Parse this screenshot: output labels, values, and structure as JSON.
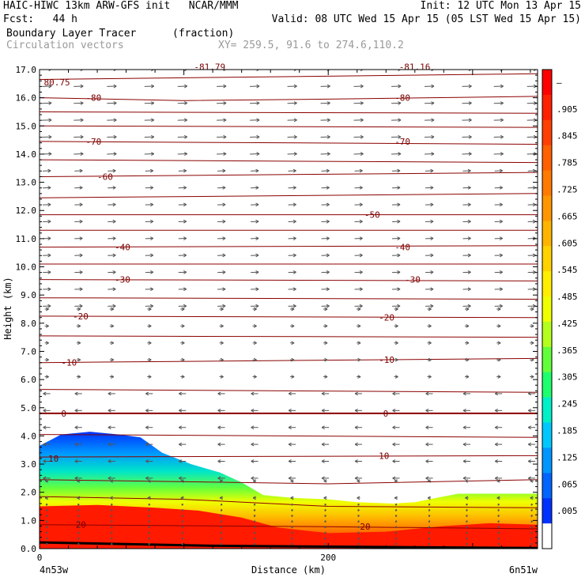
{
  "header": {
    "line1_left": "HAIC-HIWC 13km ARW-GFS init   NCAR/MMM",
    "line1_right": "Init: 12 UTC Mon 13 Apr 15",
    "line2_left": "Fcst:   44 h",
    "line2_right": "Valid: 08 UTC Wed 15 Apr 15 (05 LST Wed 15 Apr 15)",
    "field_name": "Boundary Layer Tracer",
    "field_unit": "(fraction)",
    "vector_name": "Circulation vectors",
    "xy_text": "XY= 259.5, 91.6 to 274.6,110.2"
  },
  "chart_data": {
    "type": "heatmap",
    "xlabel": "Distance (km)",
    "ylabel": "Height (km)",
    "xlim": [
      0,
      345
    ],
    "ylim": [
      0,
      17
    ],
    "x_ticks": [
      {
        "v": 0,
        "label": "0"
      },
      {
        "v": 200,
        "label": "200"
      }
    ],
    "x_end_labels": {
      "left": "4n53w",
      "right": "6n51w"
    },
    "y_ticks": [
      0,
      1,
      2,
      3,
      4,
      5,
      6,
      7,
      8,
      9,
      10,
      11,
      12,
      13,
      14,
      15,
      16,
      17
    ],
    "y_tick_labels": [
      "0.0",
      "1.0",
      "2.0",
      "3.0",
      "4.0",
      "5.0",
      "6.0",
      "7.0",
      "8.0",
      "9.0",
      "10.0",
      "11.0",
      "12.0",
      "13.0",
      "14.0",
      "15.0",
      "16.0",
      "17.0"
    ],
    "colorbar": {
      "labels": [
        "–",
        ".905",
        ".845",
        ".785",
        ".725",
        ".665",
        ".605",
        ".545",
        ".485",
        ".425",
        ".365",
        ".305",
        ".245",
        ".185",
        ".125",
        ".065",
        ".005"
      ],
      "colors": [
        "#ff0000",
        "#ff2000",
        "#ff4000",
        "#ff6000",
        "#ff7a00",
        "#ff9600",
        "#ffb400",
        "#ffd200",
        "#ffee00",
        "#f0ff00",
        "#b4ff1e",
        "#64ff3c",
        "#1eff6e",
        "#00f0c8",
        "#00c8ff",
        "#0096ff",
        "#0064ff",
        "#0032ff",
        "#ffffff"
      ]
    },
    "tracer_top_km": [
      {
        "x": 0,
        "h": 3.65
      },
      {
        "x": 15,
        "h": 4.05
      },
      {
        "x": 35,
        "h": 4.15
      },
      {
        "x": 55,
        "h": 4.05
      },
      {
        "x": 70,
        "h": 3.95
      },
      {
        "x": 85,
        "h": 3.4
      },
      {
        "x": 105,
        "h": 3.0
      },
      {
        "x": 125,
        "h": 2.7
      },
      {
        "x": 140,
        "h": 2.35
      },
      {
        "x": 155,
        "h": 1.9
      },
      {
        "x": 175,
        "h": 1.8
      },
      {
        "x": 200,
        "h": 1.75
      },
      {
        "x": 220,
        "h": 1.65
      },
      {
        "x": 245,
        "h": 1.6
      },
      {
        "x": 260,
        "h": 1.65
      },
      {
        "x": 275,
        "h": 1.8
      },
      {
        "x": 290,
        "h": 1.95
      },
      {
        "x": 312,
        "h": 1.95
      },
      {
        "x": 345,
        "h": 1.95
      }
    ],
    "red_top_km": [
      {
        "x": 0,
        "h": 1.5
      },
      {
        "x": 40,
        "h": 1.55
      },
      {
        "x": 80,
        "h": 1.45
      },
      {
        "x": 110,
        "h": 1.35
      },
      {
        "x": 140,
        "h": 1.1
      },
      {
        "x": 165,
        "h": 0.75
      },
      {
        "x": 200,
        "h": 0.55
      },
      {
        "x": 240,
        "h": 0.6
      },
      {
        "x": 280,
        "h": 0.8
      },
      {
        "x": 312,
        "h": 0.9
      },
      {
        "x": 345,
        "h": 0.85
      }
    ],
    "isotherms": [
      {
        "label": "80.75",
        "pts": [
          [
            0,
            16.65
          ],
          [
            345,
            16.85
          ]
        ]
      },
      {
        "label": "-80",
        "pts": [
          [
            0,
            16.0
          ],
          [
            100,
            15.9
          ],
          [
            200,
            15.95
          ],
          [
            345,
            16.05
          ]
        ]
      },
      {
        "label": "",
        "pts": [
          [
            0,
            15.5
          ],
          [
            345,
            15.45
          ]
        ]
      },
      {
        "label": "",
        "pts": [
          [
            0,
            15.0
          ],
          [
            345,
            14.95
          ]
        ]
      },
      {
        "label": "-70",
        "pts": [
          [
            0,
            14.45
          ],
          [
            345,
            14.35
          ]
        ]
      },
      {
        "label": "",
        "pts": [
          [
            0,
            13.8
          ],
          [
            345,
            13.7
          ]
        ]
      },
      {
        "label": "-60",
        "pts": [
          [
            0,
            13.2
          ],
          [
            345,
            13.35
          ]
        ]
      },
      {
        "label": "",
        "pts": [
          [
            0,
            12.45
          ],
          [
            345,
            12.6
          ]
        ]
      },
      {
        "label": "-50",
        "pts": [
          [
            0,
            11.85
          ],
          [
            345,
            11.85
          ]
        ]
      },
      {
        "label": "",
        "pts": [
          [
            0,
            11.3
          ],
          [
            345,
            11.3
          ]
        ]
      },
      {
        "label": "-40",
        "pts": [
          [
            0,
            10.7
          ],
          [
            345,
            10.75
          ]
        ]
      },
      {
        "label": "",
        "pts": [
          [
            0,
            10.1
          ],
          [
            345,
            10.1
          ]
        ]
      },
      {
        "label": "-30",
        "pts": [
          [
            0,
            9.55
          ],
          [
            345,
            9.5
          ]
        ]
      },
      {
        "label": "",
        "pts": [
          [
            0,
            8.9
          ],
          [
            345,
            8.85
          ]
        ]
      },
      {
        "label": "-20",
        "pts": [
          [
            0,
            8.25
          ],
          [
            345,
            8.2
          ]
        ]
      },
      {
        "label": "",
        "pts": [
          [
            0,
            7.55
          ],
          [
            345,
            7.5
          ]
        ]
      },
      {
        "label": "-10",
        "pts": [
          [
            0,
            6.6
          ],
          [
            345,
            6.75
          ]
        ]
      },
      {
        "label": "",
        "pts": [
          [
            0,
            5.65
          ],
          [
            345,
            5.55
          ]
        ]
      },
      {
        "label": "0",
        "pts": [
          [
            0,
            4.8
          ],
          [
            345,
            4.8
          ]
        ]
      },
      {
        "label": "",
        "pts": [
          [
            0,
            4.05
          ],
          [
            345,
            3.95
          ]
        ]
      },
      {
        "label": "10",
        "pts": [
          [
            0,
            3.25
          ],
          [
            345,
            3.3
          ]
        ]
      },
      {
        "label": "",
        "pts": [
          [
            0,
            2.45
          ],
          [
            200,
            2.3
          ],
          [
            345,
            2.45
          ]
        ]
      },
      {
        "label": "",
        "pts": [
          [
            0,
            1.85
          ],
          [
            100,
            1.75
          ],
          [
            200,
            1.5
          ],
          [
            345,
            1.45
          ]
        ]
      },
      {
        "label": "20",
        "pts": [
          [
            0,
            0.85
          ],
          [
            200,
            0.78
          ],
          [
            345,
            0.7
          ]
        ]
      }
    ],
    "isotherm_labels": [
      {
        "text": "80.75",
        "x": 3,
        "y": 16.55
      },
      {
        "text": "-80",
        "x": 32,
        "y": 16.0
      },
      {
        "text": "-80",
        "x": 246,
        "y": 16.0
      },
      {
        "text": "-81.79",
        "x": 107,
        "y": 17.1
      },
      {
        "text": "-81.16",
        "x": 249,
        "y": 17.1
      },
      {
        "text": "-70",
        "x": 32,
        "y": 14.45
      },
      {
        "text": "-70",
        "x": 246,
        "y": 14.45
      },
      {
        "text": "-60",
        "x": 40,
        "y": 13.2
      },
      {
        "text": "-50",
        "x": 225,
        "y": 11.85
      },
      {
        "text": "-40",
        "x": 52,
        "y": 10.7
      },
      {
        "text": "-40",
        "x": 246,
        "y": 10.7
      },
      {
        "text": "-30",
        "x": 52,
        "y": 9.55
      },
      {
        "text": "-30",
        "x": 253,
        "y": 9.55
      },
      {
        "text": "-20",
        "x": 23,
        "y": 8.25
      },
      {
        "text": "-20",
        "x": 235,
        "y": 8.2
      },
      {
        "text": "-10",
        "x": 15,
        "y": 6.6
      },
      {
        "text": "-10",
        "x": 235,
        "y": 6.7
      },
      {
        "text": "0",
        "x": 15,
        "y": 4.8
      },
      {
        "text": "0",
        "x": 238,
        "y": 4.8
      },
      {
        "text": "10",
        "x": 6,
        "y": 3.2
      },
      {
        "text": "10",
        "x": 235,
        "y": 3.3
      },
      {
        "text": "20",
        "x": 25,
        "y": 0.85
      },
      {
        "text": "20",
        "x": 222,
        "y": 0.78
      }
    ],
    "vectors": {
      "x_columns": [
        5,
        27,
        50,
        76,
        99,
        126,
        149,
        175,
        198,
        221,
        247,
        270,
        296,
        318,
        341
      ],
      "bands": [
        {
          "h": [
            13.5,
            17.0
          ],
          "dx": 12,
          "dy": 0.02
        },
        {
          "h": [
            8.6,
            13.4
          ],
          "dx": 10,
          "dy": 0.02
        },
        {
          "h": [
            5.6,
            8.5
          ],
          "dx": 5,
          "dy": 0.0
        },
        {
          "h": [
            2.5,
            5.5
          ],
          "dx": -9,
          "dy": 0.0
        },
        {
          "h": [
            1.7,
            2.4
          ],
          "dx": -4,
          "dy": 0.0
        },
        {
          "h": [
            0.1,
            1.6
          ],
          "dx": -1,
          "dy": -0.12
        }
      ]
    }
  }
}
